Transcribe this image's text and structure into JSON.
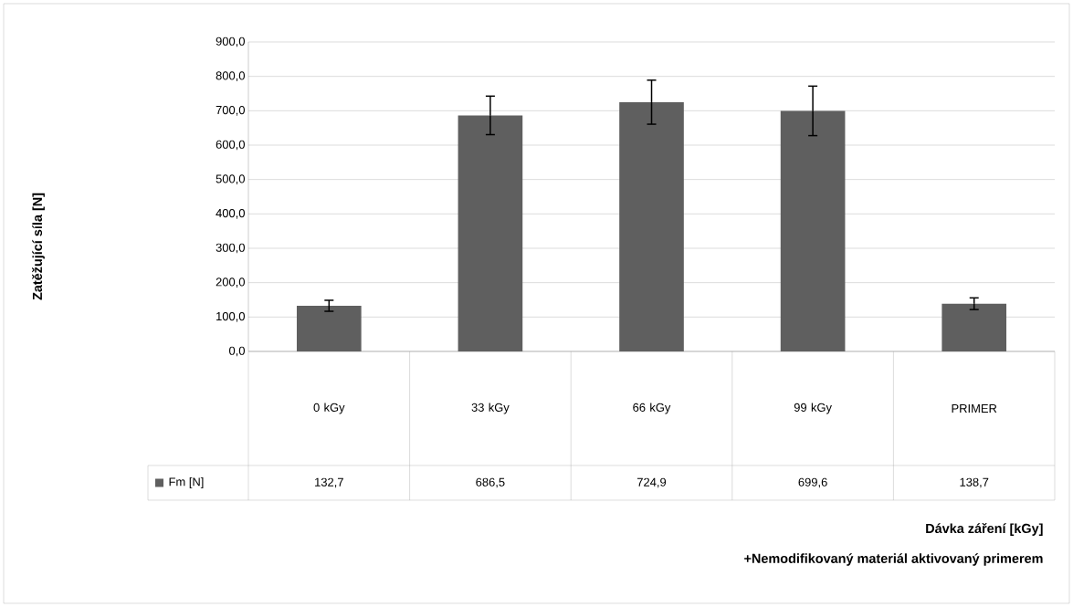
{
  "chart_data": {
    "type": "bar",
    "annotations": [
      "Zatěžující síla [N]",
      "Dávka záření [kGy]",
      "+Nemodifikovaný materiál aktivovaný primerem"
    ],
    "categories": [
      "0 kGy",
      "33 kGy",
      "66 kGy",
      "99 kGy",
      "PRIMER"
    ],
    "series": [
      {
        "name": "Fm [N]",
        "color": "#5f5f5f",
        "values": [
          132.7,
          686.5,
          724.9,
          699.6,
          138.7
        ],
        "errors": [
          16,
          56,
          64,
          72,
          17
        ],
        "value_labels": [
          "132,7",
          "686,5",
          "724,9",
          "699,6",
          "138,7"
        ]
      }
    ],
    "ylim": [
      0,
      900
    ],
    "yticks": [
      {
        "value": 0,
        "label": "0,0"
      },
      {
        "value": 100,
        "label": "100,0"
      },
      {
        "value": 200,
        "label": "200,0"
      },
      {
        "value": 300,
        "label": "300,0"
      },
      {
        "value": 400,
        "label": "400,0"
      },
      {
        "value": 500,
        "label": "500,0"
      },
      {
        "value": 600,
        "label": "600,0"
      },
      {
        "value": 700,
        "label": "700,0"
      },
      {
        "value": 800,
        "label": "800,0"
      },
      {
        "value": 900,
        "label": "900,0"
      }
    ],
    "grid": "y"
  }
}
